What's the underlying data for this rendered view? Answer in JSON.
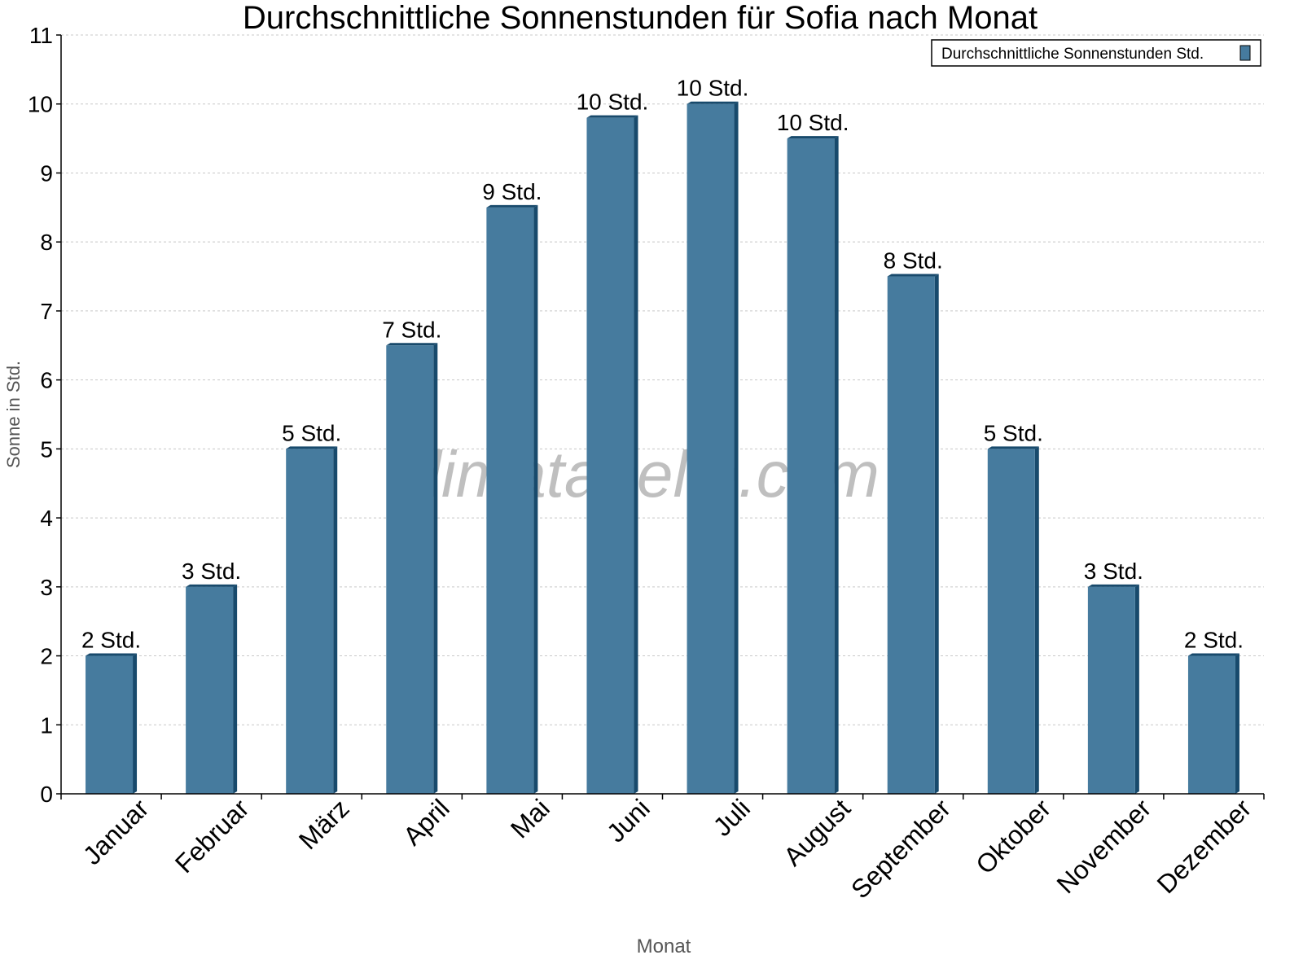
{
  "watermark": "klimatabelle.com",
  "colors": {
    "bar": "#467b9e",
    "bar_side": "#184a6c",
    "grid": "#c8c8c8"
  },
  "chart_data": {
    "type": "bar",
    "title": "Durchschnittliche Sonnenstunden für Sofia nach Monat",
    "xlabel": "Monat",
    "ylabel": "Sonne in Std.",
    "ylim": [
      0,
      11
    ],
    "yticks": [
      0,
      1,
      2,
      3,
      4,
      5,
      6,
      7,
      8,
      9,
      10,
      11
    ],
    "grid": true,
    "legend_placement": "top-right",
    "categories": [
      "Januar",
      "Februar",
      "März",
      "April",
      "Mai",
      "Juni",
      "Juli",
      "August",
      "September",
      "Oktober",
      "November",
      "Dezember"
    ],
    "series": [
      {
        "name": "Durchschnittliche Sonnenstunden Std.",
        "values": [
          2,
          3,
          5,
          6.5,
          8.5,
          9.8,
          10,
          9.5,
          7.5,
          5,
          3,
          2
        ],
        "labels": [
          "2 Std.",
          "3 Std.",
          "5 Std.",
          "7 Std.",
          "9 Std.",
          "10 Std.",
          "10 Std.",
          "10 Std.",
          "8 Std.",
          "5 Std.",
          "3 Std.",
          "2 Std."
        ]
      }
    ]
  }
}
